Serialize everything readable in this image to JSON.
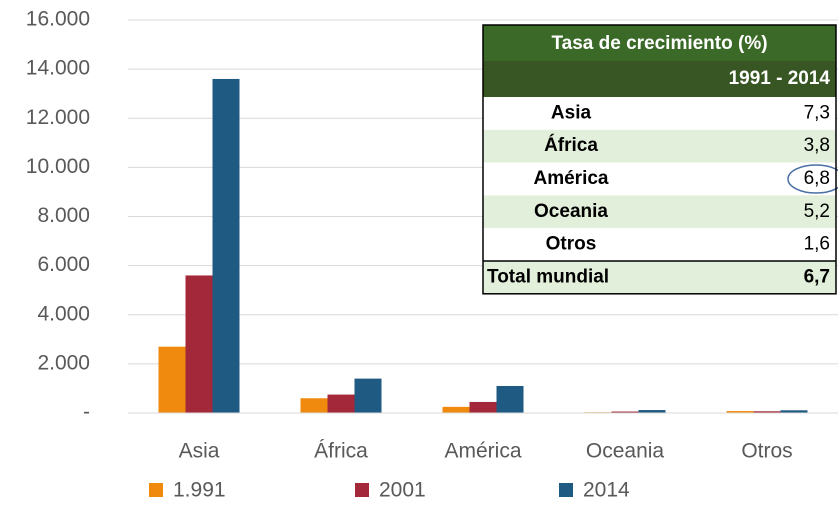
{
  "chart_data": {
    "type": "bar",
    "categories": [
      "Asia",
      "África",
      "América",
      "Oceania",
      "Otros"
    ],
    "series": [
      {
        "name": "1.991",
        "color": "#f08a0e",
        "values": [
          2700,
          600,
          250,
          30,
          80
        ]
      },
      {
        "name": "2001",
        "color": "#a3293a",
        "values": [
          5600,
          750,
          450,
          60,
          70
        ]
      },
      {
        "name": "2014",
        "color": "#1f5a82",
        "values": [
          13600,
          1400,
          1100,
          120,
          110
        ]
      }
    ],
    "ylim": [
      0,
      16000
    ],
    "yticks": [
      {
        "value": 0,
        "label": "-"
      },
      {
        "value": 2000,
        "label": "2.000"
      },
      {
        "value": 4000,
        "label": "4.000"
      },
      {
        "value": 6000,
        "label": "6.000"
      },
      {
        "value": 8000,
        "label": "8.000"
      },
      {
        "value": 10000,
        "label": "10.000"
      },
      {
        "value": 12000,
        "label": "12.000"
      },
      {
        "value": 14000,
        "label": "14.000"
      },
      {
        "value": 16000,
        "label": "16.000"
      }
    ],
    "grid": true,
    "legend": "bottom",
    "table": {
      "title": "Tasa de crecimiento (%)",
      "period": "1991 - 2014",
      "rows": [
        [
          "Asia",
          "7,3"
        ],
        [
          "África",
          "3,8"
        ],
        [
          "América",
          "6,8"
        ],
        [
          "Oceania",
          "5,2"
        ],
        [
          "Otros",
          "1,6"
        ]
      ],
      "total": [
        "Total mundial",
        "6,7"
      ]
    }
  }
}
